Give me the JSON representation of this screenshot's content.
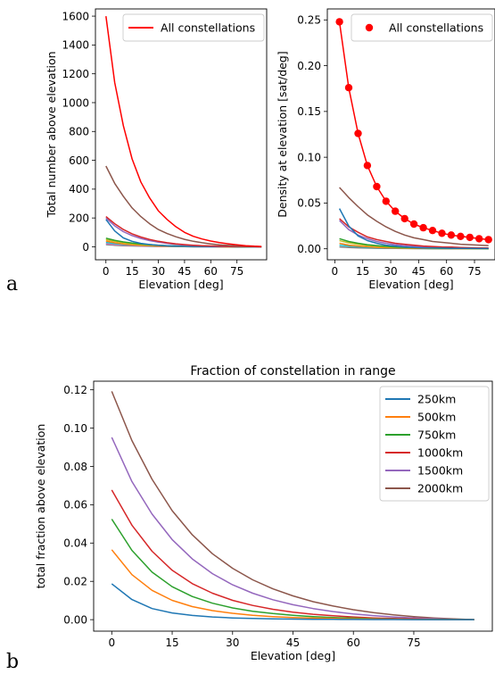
{
  "panel_labels": [
    "a",
    "b"
  ],
  "chart_data": [
    {
      "type": "line",
      "title": "",
      "xlabel": "Elevation [deg]",
      "ylabel": "Total number above elevation",
      "xlim": [
        -6,
        92
      ],
      "ylim": [
        -90,
        1650
      ],
      "xticks": [
        0,
        15,
        30,
        45,
        60,
        75
      ],
      "yticks": [
        0,
        200,
        400,
        600,
        800,
        1000,
        1200,
        1400,
        1600
      ],
      "legend": {
        "position": "top-right",
        "entries": [
          "All constellations"
        ]
      },
      "x": [
        0,
        5,
        10,
        15,
        20,
        25,
        30,
        35,
        40,
        45,
        50,
        55,
        60,
        65,
        70,
        75,
        80,
        85,
        89
      ],
      "series": [
        {
          "name": "All constellations",
          "color": "#ff0000",
          "values": [
            1600,
            1140,
            840,
            610,
            450,
            340,
            250,
            190,
            140,
            100,
            73,
            54,
            40,
            29,
            21,
            14,
            8,
            4,
            2
          ]
        },
        {
          "color": "#8c564b",
          "values": [
            560,
            440,
            350,
            270,
            210,
            160,
            120,
            92,
            70,
            52,
            38,
            28,
            20,
            14,
            10,
            6,
            4,
            2,
            1
          ]
        },
        {
          "color": "#d62728",
          "values": [
            210,
            160,
            120,
            90,
            68,
            51,
            38,
            28,
            21,
            15,
            11,
            8,
            6,
            4,
            3,
            2,
            1,
            1,
            0
          ]
        },
        {
          "color": "#9467bd",
          "values": [
            200,
            145,
            105,
            78,
            58,
            43,
            32,
            24,
            17,
            12,
            9,
            7,
            5,
            3,
            2,
            1,
            1,
            0,
            0
          ]
        },
        {
          "color": "#1f77b4",
          "values": [
            190,
            110,
            62,
            38,
            24,
            16,
            11,
            7,
            5,
            3,
            2,
            2,
            1,
            1,
            1,
            0,
            0,
            0,
            0
          ]
        },
        {
          "color": "#2ca02c",
          "values": [
            60,
            45,
            34,
            26,
            20,
            15,
            11,
            8,
            6,
            4,
            3,
            2,
            2,
            1,
            1,
            0,
            0,
            0,
            0
          ]
        },
        {
          "color": "#bcbd22",
          "values": [
            50,
            38,
            28,
            21,
            16,
            12,
            9,
            7,
            5,
            3,
            2,
            2,
            1,
            1,
            0,
            0,
            0,
            0,
            0
          ]
        },
        {
          "color": "#ff7f0e",
          "values": [
            40,
            28,
            20,
            14,
            10,
            7,
            5,
            4,
            3,
            2,
            1,
            1,
            1,
            0,
            0,
            0,
            0,
            0,
            0
          ]
        },
        {
          "color": "#17becf",
          "values": [
            30,
            22,
            16,
            12,
            9,
            6,
            4,
            3,
            2,
            2,
            1,
            1,
            0,
            0,
            0,
            0,
            0,
            0,
            0
          ]
        },
        {
          "color": "#e377c2",
          "values": [
            22,
            16,
            12,
            9,
            6,
            4,
            3,
            2,
            2,
            1,
            1,
            0,
            0,
            0,
            0,
            0,
            0,
            0,
            0
          ]
        },
        {
          "color": "#7f7f7f",
          "values": [
            15,
            11,
            8,
            6,
            4,
            3,
            2,
            2,
            1,
            1,
            0,
            0,
            0,
            0,
            0,
            0,
            0,
            0,
            0
          ]
        }
      ]
    },
    {
      "type": "line",
      "title": "",
      "xlabel": "Elevation [deg]",
      "ylabel": "Density at elevation [sat/deg]",
      "xlim": [
        -4,
        86
      ],
      "ylim": [
        -0.012,
        0.262
      ],
      "xticks": [
        0,
        15,
        30,
        45,
        60,
        75
      ],
      "yticks": [
        0.0,
        0.05,
        0.1,
        0.15,
        0.2,
        0.25
      ],
      "legend": {
        "position": "top-right",
        "entries": [
          "All constellations"
        ]
      },
      "x": [
        2.5,
        7.5,
        12.5,
        17.5,
        22.5,
        27.5,
        32.5,
        37.5,
        42.5,
        47.5,
        52.5,
        57.5,
        62.5,
        67.5,
        72.5,
        77.5,
        82.5
      ],
      "series": [
        {
          "name": "All constellations",
          "color": "#ff0000",
          "marker": "circle",
          "values": [
            0.248,
            0.176,
            0.126,
            0.091,
            0.068,
            0.052,
            0.041,
            0.033,
            0.027,
            0.023,
            0.02,
            0.017,
            0.015,
            0.0135,
            0.0125,
            0.011,
            0.01
          ]
        },
        {
          "color": "#8c564b",
          "values": [
            0.067,
            0.056,
            0.046,
            0.037,
            0.03,
            0.024,
            0.019,
            0.015,
            0.012,
            0.01,
            0.008,
            0.007,
            0.006,
            0.005,
            0.0045,
            0.004,
            0.0035
          ]
        },
        {
          "color": "#1f77b4",
          "values": [
            0.044,
            0.025,
            0.014,
            0.009,
            0.006,
            0.004,
            0.003,
            0.002,
            0.0015,
            0.001,
            0.001,
            0.0008,
            0.0006,
            0.0005,
            0.0004,
            0.0003,
            0.0003
          ]
        },
        {
          "color": "#d62728",
          "values": [
            0.033,
            0.024,
            0.018,
            0.013,
            0.01,
            0.008,
            0.006,
            0.005,
            0.004,
            0.003,
            0.0025,
            0.002,
            0.0018,
            0.0015,
            0.0012,
            0.001,
            0.001
          ]
        },
        {
          "color": "#9467bd",
          "values": [
            0.031,
            0.021,
            0.015,
            0.011,
            0.008,
            0.006,
            0.0045,
            0.0035,
            0.0027,
            0.002,
            0.0016,
            0.0013,
            0.001,
            0.0008,
            0.0007,
            0.0006,
            0.0005
          ]
        },
        {
          "color": "#2ca02c",
          "values": [
            0.011,
            0.008,
            0.006,
            0.0045,
            0.0035,
            0.0027,
            0.002,
            0.0016,
            0.0012,
            0.001,
            0.0008,
            0.0006,
            0.0005,
            0.0004,
            0.0003,
            0.0003,
            0.0002
          ]
        },
        {
          "color": "#bcbd22",
          "values": [
            0.009,
            0.0065,
            0.005,
            0.0037,
            0.0028,
            0.0021,
            0.0016,
            0.0012,
            0.001,
            0.0008,
            0.0006,
            0.0005,
            0.0004,
            0.0003,
            0.0002,
            0.0002,
            0.0002
          ]
        },
        {
          "color": "#ff7f0e",
          "values": [
            0.006,
            0.004,
            0.003,
            0.0022,
            0.0016,
            0.0012,
            0.0009,
            0.0007,
            0.0005,
            0.0004,
            0.0003,
            0.0002,
            0.0002,
            0.0001,
            0.0001,
            0.0001,
            0.0001
          ]
        },
        {
          "color": "#17becf",
          "values": [
            0.004,
            0.003,
            0.0022,
            0.0016,
            0.0012,
            0.0009,
            0.0007,
            0.0005,
            0.0004,
            0.0003,
            0.0002,
            0.0002,
            0.0001,
            0.0001,
            0.0001,
            0.0001,
            0.0001
          ]
        },
        {
          "color": "#7f7f7f",
          "values": [
            0.002,
            0.0015,
            0.0011,
            0.0008,
            0.0006,
            0.0005,
            0.0004,
            0.0003,
            0.0002,
            0.0002,
            0.0001,
            0.0001,
            0.0001,
            0.0001,
            0.0001,
            0.0001,
            0.0001
          ]
        }
      ]
    },
    {
      "type": "line",
      "title": "Fraction of constellation in range",
      "xlabel": "Elevation [deg]",
      "ylabel": "total fraction above elevation",
      "xlim": [
        -4.5,
        94.5
      ],
      "ylim": [
        -0.006,
        0.1245
      ],
      "xticks": [
        0,
        15,
        30,
        45,
        60,
        75
      ],
      "yticks": [
        0.0,
        0.02,
        0.04,
        0.06,
        0.08,
        0.1,
        0.12
      ],
      "legend": {
        "position": "top-right",
        "entries": [
          "250km",
          "500km",
          "750km",
          "1000km",
          "1500km",
          "2000km"
        ]
      },
      "x": [
        0,
        5,
        10,
        15,
        20,
        25,
        30,
        35,
        40,
        45,
        50,
        55,
        60,
        65,
        70,
        75,
        80,
        85,
        90
      ],
      "series": [
        {
          "name": "250km",
          "color": "#1f77b4",
          "values": [
            0.0187,
            0.0105,
            0.0058,
            0.0035,
            0.0022,
            0.0014,
            0.0009,
            0.0006,
            0.0004,
            0.0003,
            0.0002,
            0.00015,
            0.0001,
            7e-05,
            5e-05,
            3e-05,
            2e-05,
            1e-05,
            0
          ]
        },
        {
          "name": "500km",
          "color": "#ff7f0e",
          "values": [
            0.0365,
            0.0235,
            0.0153,
            0.0101,
            0.0068,
            0.0047,
            0.0033,
            0.0023,
            0.0016,
            0.0011,
            0.0008,
            0.0006,
            0.0004,
            0.0003,
            0.0002,
            0.0001,
            7e-05,
            3e-05,
            0
          ]
        },
        {
          "name": "750km",
          "color": "#2ca02c",
          "values": [
            0.0525,
            0.0362,
            0.0248,
            0.0172,
            0.0121,
            0.0086,
            0.0061,
            0.0044,
            0.0032,
            0.0023,
            0.0016,
            0.0011,
            0.0008,
            0.0005,
            0.0003,
            0.0002,
            0.0001,
            5e-05,
            0
          ]
        },
        {
          "name": "1000km",
          "color": "#d62728",
          "values": [
            0.0677,
            0.0493,
            0.0357,
            0.0258,
            0.0188,
            0.0138,
            0.0101,
            0.0074,
            0.0054,
            0.0039,
            0.0028,
            0.002,
            0.0014,
            0.0009,
            0.0006,
            0.0004,
            0.0002,
            0.0001,
            0
          ]
        },
        {
          "name": "1500km",
          "color": "#9467bd",
          "values": [
            0.0952,
            0.0721,
            0.0551,
            0.0418,
            0.0317,
            0.024,
            0.0182,
            0.0138,
            0.0104,
            0.0078,
            0.0058,
            0.0042,
            0.003,
            0.0021,
            0.0014,
            0.0009,
            0.0005,
            0.0002,
            0
          ]
        },
        {
          "name": "2000km",
          "color": "#8c564b",
          "values": [
            0.1192,
            0.0935,
            0.0733,
            0.0569,
            0.0443,
            0.0344,
            0.0268,
            0.0208,
            0.0161,
            0.0124,
            0.0094,
            0.0071,
            0.0052,
            0.0037,
            0.0025,
            0.0016,
            0.0009,
            0.0004,
            0
          ]
        }
      ]
    }
  ]
}
